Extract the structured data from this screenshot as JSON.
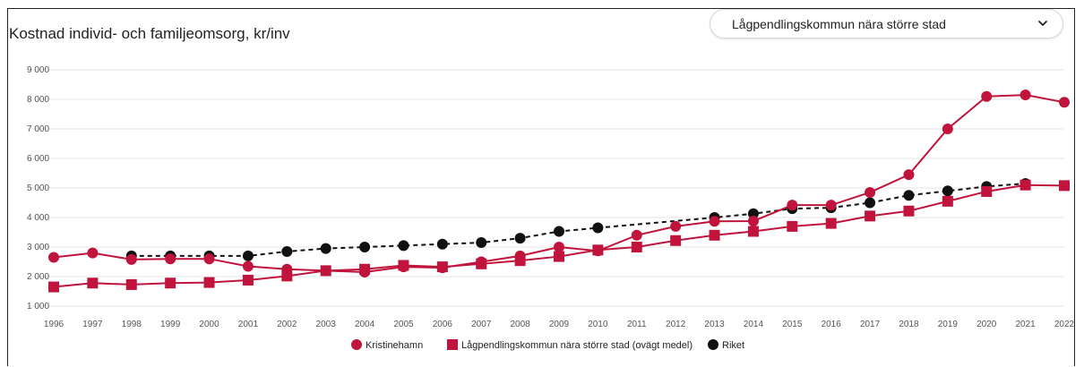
{
  "title": "Kostnad individ- och familjeomsorg, kr/inv",
  "dropdown": {
    "selected": "Lågpendlingskommun nära större stad",
    "icon": "chevron-down-icon"
  },
  "chart_data": {
    "type": "line",
    "title": "Kostnad individ- och familjeomsorg, kr/inv",
    "xlabel": "",
    "ylabel": "",
    "ylim": [
      1000,
      9000
    ],
    "yticks": [
      1000,
      2000,
      3000,
      4000,
      5000,
      6000,
      7000,
      8000,
      9000
    ],
    "ytick_labels": [
      "1 000",
      "2 000",
      "3 000",
      "4 000",
      "5 000",
      "6 000",
      "7 000",
      "8 000",
      "9 000"
    ],
    "grid": true,
    "legend_position": "bottom-center",
    "x": [
      "1996",
      "1997",
      "1998",
      "1999",
      "2000",
      "2001",
      "2002",
      "2003",
      "2004",
      "2005",
      "2006",
      "2007",
      "2008",
      "2009",
      "2010",
      "2011",
      "2012",
      "2013",
      "2014",
      "2015",
      "2016",
      "2017",
      "2018",
      "2019",
      "2020",
      "2021",
      "2022"
    ],
    "series": [
      {
        "name": "Kristinehamn",
        "color": "#c0143c",
        "marker": "circle",
        "dashed": false,
        "values": [
          2650,
          2800,
          2580,
          2600,
          2600,
          2350,
          2250,
          2200,
          2150,
          2330,
          2300,
          2500,
          2700,
          3000,
          2870,
          3400,
          3700,
          3870,
          3880,
          4420,
          4420,
          4850,
          5450,
          7000,
          8100,
          8150,
          7900
        ]
      },
      {
        "name": "Lågpendlingskommun nära större stad (ovägt medel)",
        "color": "#c0143c",
        "marker": "square",
        "dashed": false,
        "values": [
          1650,
          1780,
          1730,
          1780,
          1800,
          1880,
          2020,
          2200,
          2250,
          2380,
          2330,
          2430,
          2540,
          2680,
          2900,
          3000,
          3220,
          3400,
          3530,
          3700,
          3800,
          4050,
          4220,
          4550,
          4880,
          5100,
          5080
        ]
      },
      {
        "name": "Riket",
        "color": "#111111",
        "marker": "circle",
        "dashed": true,
        "values": [
          null,
          null,
          2700,
          2700,
          2700,
          2700,
          2850,
          2950,
          3000,
          3050,
          3100,
          3150,
          3300,
          3530,
          3650,
          null,
          null,
          4000,
          4130,
          4300,
          4330,
          4500,
          4750,
          4900,
          5050,
          5150,
          null
        ]
      }
    ]
  }
}
